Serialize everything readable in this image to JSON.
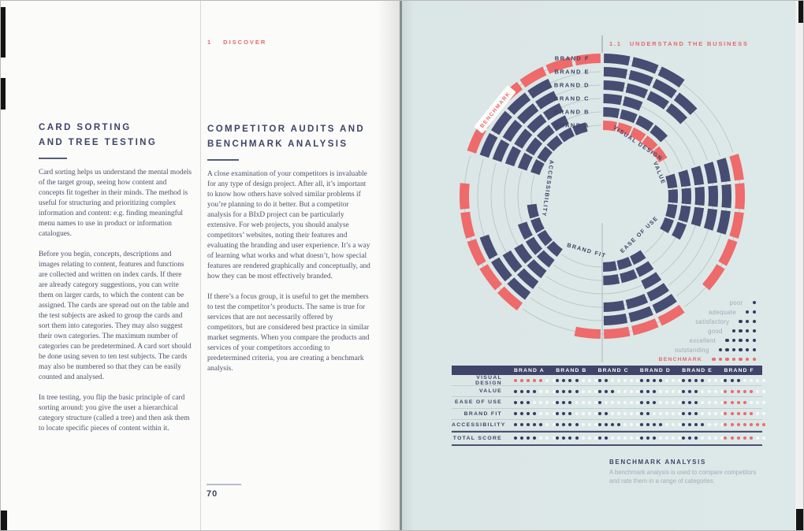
{
  "left_page": {
    "card_sorting": {
      "title_line1": "CARD SORTING",
      "title_line2": "AND TREE TESTING",
      "paragraphs": [
        "Card sorting helps us understand the mental models of the target group, seeing how content and concepts fit together in their minds. The method is useful for structuring and prioritizing complex information and content: e.g. finding meaningful menu names to use in product or information catalogues.",
        "Before you begin, concepts, descriptions and images relating to content, features and functions are collected and written on index cards. If there are already category suggestions, you can write them on larger cards, to which the content can be assigned. The cards are spread out on the table and the test subjects are asked to group the cards and sort them into categories. They may also suggest their own categories. The maximum number of categories can be predetermined. A card sort should be done using seven to ten test subjects. The cards may also be numbered so that they can be easily counted and analysed.",
        "In tree testing, you flip the basic principle of card sorting around: you give the user a hierarchical category structure (called a tree) and then ask them to locate specific pieces of content within it."
      ]
    },
    "competitor": {
      "kicker_number": "1",
      "kicker_text": "DISCOVER",
      "title_line1": "COMPETITOR AUDITS AND",
      "title_line2": "BENCHMARK ANALYSIS",
      "paragraphs": [
        "A close examination of your competitors is invaluable for any type of design project. After all, it’s important to know how others have solved similar problems if you’re planning to do it better. But a competitor analysis for a BIxD project can be particularly extensive. For web projects, you should analyse competitors’ websites, noting their features and evaluating the branding and user experience. It’s a way of learning what works and what doesn’t, how special features are rendered graphically and conceptually, and how they can be most effectively branded.",
        "If there’s a focus group, it is useful to get the members to test the competitor’s products. The same is true for services that are not necessarily offered by competitors, but are considered best practice in similar market segments. When you compare the products and services of your competitors according to predetermined criteria, you are creating a benchmark analysis."
      ]
    },
    "page_number": "70"
  },
  "right_page": {
    "header_number": "1.1",
    "header_text": "UNDERSTAND THE BUSINESS",
    "caption": {
      "title": "BENCHMARK ANALYSIS",
      "line1": "A benchmark analysis is used to compare competitors",
      "line2": "and rate them in a range of categories."
    },
    "chart_data": {
      "type": "radial-bar",
      "categories": [
        "VISUAL DESIGN",
        "VALUE",
        "EASE OF USE",
        "BRAND FIT",
        "ACCESSIBILITY"
      ],
      "brands": [
        "BRAND A",
        "BRAND B",
        "BRAND C",
        "BRAND D",
        "BRAND E",
        "BRAND F"
      ],
      "ring_order_inner_to_outer": [
        "BRAND A",
        "BRAND B",
        "BRAND C",
        "BRAND D",
        "BRAND E",
        "BRAND F"
      ],
      "max_score_per_category": 6,
      "benchmark_ring_label": "BENCHMARK",
      "benchmark_by_category": [
        "BRAND A",
        "BRAND F",
        "BRAND F",
        "BRAND F",
        "BRAND F"
      ],
      "benchmark_total": "BRAND F",
      "colors": {
        "bar": "#474c72",
        "benchmark": "#ee6a6b",
        "guide": "#b5c0c3",
        "page_bg": "#dde8e8"
      },
      "table": {
        "header": [
          "",
          "BRAND A",
          "BRAND B",
          "BRAND C",
          "BRAND D",
          "BRAND E",
          "BRAND F"
        ],
        "positions_per_cell": 7,
        "rows": [
          {
            "label": "VISUAL DESIGN",
            "scores": [
              5,
              4,
              2,
              4,
              4,
              3
            ],
            "benchmark_index": 0
          },
          {
            "label": "VALUE",
            "scores": [
              4,
              4,
              3,
              3,
              3,
              5
            ],
            "benchmark_index": 5
          },
          {
            "label": "EASE OF USE",
            "scores": [
              3,
              3,
              1,
              3,
              3,
              4
            ],
            "benchmark_index": 5
          },
          {
            "label": "BRAND FIT",
            "scores": [
              4,
              3,
              2,
              2,
              3,
              5
            ],
            "benchmark_index": 5
          },
          {
            "label": "ACCESSIBILITY",
            "scores": [
              5,
              4,
              4,
              4,
              4,
              7
            ],
            "benchmark_index": 5
          }
        ],
        "total_row": {
          "label": "TOTAL SCORE",
          "scores": [
            4,
            4,
            2,
            3,
            3,
            5
          ],
          "benchmark_index": 5
        }
      },
      "legend": {
        "scale": [
          {
            "label": "poor",
            "dots": 1
          },
          {
            "label": "adequate",
            "dots": 2
          },
          {
            "label": "satisfactory",
            "dots": 3
          },
          {
            "label": "good",
            "dots": 4
          },
          {
            "label": "excellent",
            "dots": 5
          },
          {
            "label": "outstanding",
            "dots": 6
          }
        ],
        "benchmark": {
          "label": "BENCHMARK",
          "dots": 7
        }
      }
    }
  }
}
